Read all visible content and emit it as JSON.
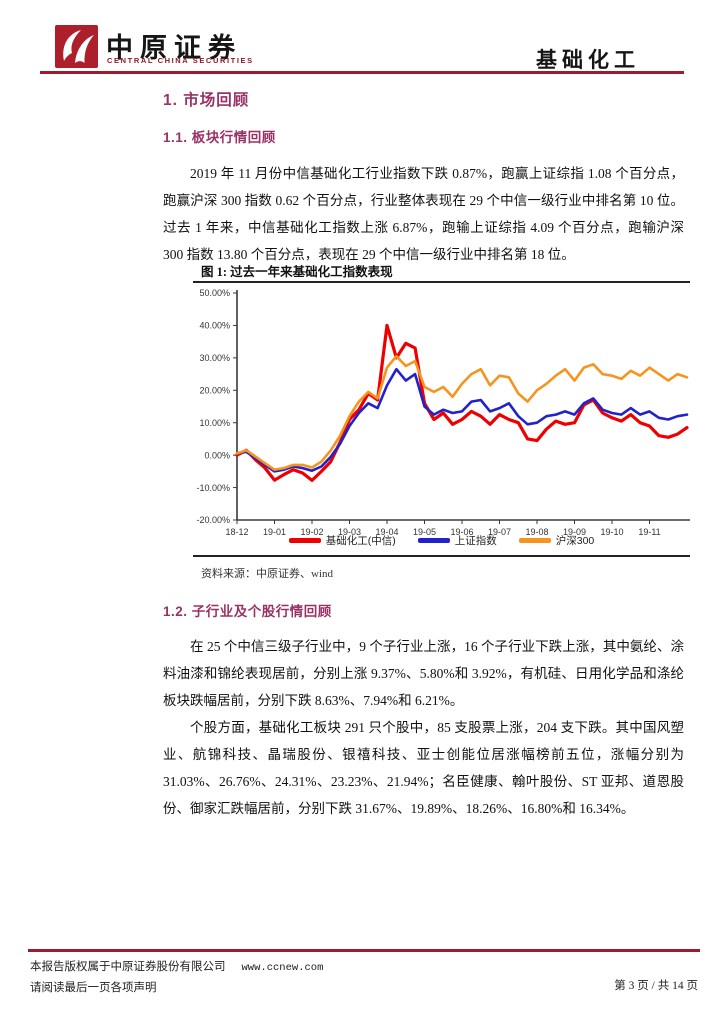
{
  "brand": {
    "name_cn": "中原证券",
    "name_en": "CENTRAL CHINA SECURITIES",
    "logo_color": "#ad1f2a"
  },
  "header": {
    "category": "基础化工"
  },
  "sections": {
    "s1_title": "1. 市场回顾",
    "s1_1_title": "1.1. 板块行情回顾",
    "s1_1_paragraph": "2019 年 11 月份中信基础化工行业指数下跌 0.87%，跑赢上证综指 1.08 个百分点，跑赢沪深 300 指数 0.62 个百分点，行业整体表现在 29 个中信一级行业中排名第 10 位。过去 1 年来，中信基础化工指数上涨 6.87%，跑输上证综指 4.09 个百分点，跑输沪深 300 指数 13.80 个百分点，表现在 29 个中信一级行业中排名第 18 位。",
    "s1_2_title": "1.2. 子行业及个股行情回顾",
    "s1_2_paragraph1": "在 25 个中信三级子行业中，9 个子行业上涨，16 个子行业下跌上涨，其中氨纶、涂料油漆和锦纶表现居前，分别上涨 9.37%、5.80%和 3.92%，有机硅、日用化学品和涤纶板块跌幅居前，分别下跌 8.63%、7.94%和 6.21%。",
    "s1_2_paragraph2": "个股方面，基础化工板块 291 只个股中，85 支股票上涨，204 支下跌。其中国风塑业、航锦科技、晶瑞股份、银禧科技、亚士创能位居涨幅榜前五位，涨幅分别为 31.03%、26.76%、24.31%、23.23%、21.94%；名臣健康、翰叶股份、ST 亚邦、道恩股份、御家汇跌幅居前，分别下跌 31.67%、19.89%、18.26%、16.80%和 16.34%。"
  },
  "figure": {
    "title": "图 1: 过去一年来基础化工指数表现",
    "source": "资料来源：中原证券、wind"
  },
  "chart_data": {
    "type": "line",
    "title": "过去一年来基础化工指数表现",
    "xlabel": "",
    "ylabel": "",
    "ylim": [
      -20,
      50
    ],
    "grid": false,
    "legend_position": "bottom",
    "y_tick_labels": [
      "50.00%",
      "40.00%",
      "30.00%",
      "20.00%",
      "10.00%",
      "0.00%",
      "-10.00%",
      "-20.00%"
    ],
    "x_tick_labels": [
      "18-12",
      "19-01",
      "19-02",
      "19-03",
      "19-04",
      "19-05",
      "19-06",
      "19-07",
      "19-08",
      "19-09",
      "19-10",
      "19-11"
    ],
    "points_per_month": 4,
    "series": [
      {
        "name": "基础化工(中信)",
        "color": "#ee0000",
        "width": 3.2,
        "values": [
          0,
          1.5,
          -1.5,
          -4,
          -7.7,
          -6,
          -4.5,
          -5.5,
          -7.8,
          -5,
          -2,
          4,
          11,
          14,
          19,
          17,
          40,
          30,
          34.5,
          33,
          16,
          11,
          13,
          9.5,
          11,
          13.5,
          12,
          9.5,
          12.5,
          11,
          10,
          5,
          4.5,
          8,
          10.5,
          9.5,
          10,
          15.5,
          17,
          13,
          11.5,
          10.5,
          12.5,
          10,
          9,
          6,
          5.5,
          6.5,
          8.5
        ]
      },
      {
        "name": "上证指数",
        "color": "#2222cc",
        "width": 2.6,
        "values": [
          0.5,
          1,
          -1,
          -3,
          -5,
          -4.5,
          -3.5,
          -4,
          -4.8,
          -3.5,
          -0.5,
          3.5,
          9,
          13,
          16,
          14.5,
          21.5,
          26.5,
          23,
          25,
          15,
          12.5,
          14,
          13,
          13.5,
          16.5,
          17,
          13.5,
          14.5,
          16,
          12,
          9.5,
          10,
          12,
          12.5,
          13.5,
          12.5,
          16,
          17.5,
          14,
          13,
          12.5,
          14.5,
          12.5,
          13.5,
          11.5,
          11,
          12,
          12.5
        ]
      },
      {
        "name": "沪深300",
        "color": "#f7941d",
        "width": 2.6,
        "values": [
          0.5,
          1.5,
          -0.5,
          -2.5,
          -4.5,
          -4,
          -3,
          -3,
          -3.8,
          -2,
          1.5,
          6,
          12,
          16.5,
          19.5,
          17.5,
          27,
          30.5,
          27.5,
          29,
          21,
          19.5,
          21,
          18,
          22,
          25,
          26.5,
          21.5,
          24.5,
          24,
          19,
          16.5,
          20,
          22,
          24.5,
          26.5,
          23,
          27,
          28,
          25,
          24.5,
          23.5,
          26,
          24.5,
          27,
          25,
          23,
          25,
          24
        ]
      }
    ]
  },
  "footer": {
    "copyright": "本报告版权属于中原证券股份有限公司",
    "website": "www.ccnew.com",
    "disclaimer": "请阅读最后一页各项声明",
    "page_indicator": "第 3 页  /  共 14 页"
  }
}
